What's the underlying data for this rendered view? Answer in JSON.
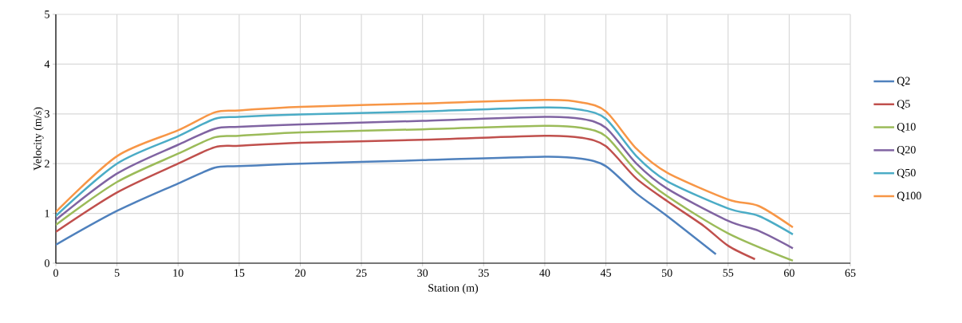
{
  "chart_data": {
    "type": "line",
    "xlabel": "Station (m)",
    "ylabel": "Velocity (m/s)",
    "xlim": [
      0,
      65
    ],
    "xticks": [
      0,
      5,
      10,
      15,
      20,
      25,
      30,
      35,
      40,
      45,
      50,
      55,
      60,
      65
    ],
    "ylim": [
      0,
      5
    ],
    "yticks": [
      0,
      1,
      2,
      3,
      4,
      5
    ],
    "grid": true,
    "legend": "right",
    "marker": "none",
    "line_style": "solid",
    "series": [
      {
        "name": "Q2",
        "color": "#4f81bd",
        "x": [
          0,
          5,
          10,
          13,
          15,
          20,
          30,
          40,
          43,
          45,
          47.5,
          50,
          54
        ],
        "values": [
          0.37,
          1.05,
          1.6,
          1.92,
          1.95,
          2.0,
          2.07,
          2.14,
          2.1,
          1.95,
          1.4,
          0.95,
          0.18
        ]
      },
      {
        "name": "Q5",
        "color": "#c0504d",
        "x": [
          0,
          5,
          10,
          13,
          15,
          20,
          30,
          40,
          43,
          45,
          47.5,
          50,
          53,
          55,
          57.2
        ],
        "values": [
          0.63,
          1.42,
          2.0,
          2.33,
          2.36,
          2.42,
          2.48,
          2.56,
          2.52,
          2.35,
          1.7,
          1.25,
          0.75,
          0.35,
          0.08
        ]
      },
      {
        "name": "Q10",
        "color": "#9bbb59",
        "x": [
          0,
          5,
          10,
          13,
          15,
          20,
          30,
          40,
          43,
          45,
          47.5,
          50,
          55,
          60.3
        ],
        "values": [
          0.77,
          1.63,
          2.2,
          2.53,
          2.56,
          2.63,
          2.69,
          2.76,
          2.72,
          2.55,
          1.85,
          1.35,
          0.6,
          0.05
        ]
      },
      {
        "name": "Q20",
        "color": "#8064a2",
        "x": [
          0,
          5,
          10,
          13,
          15,
          20,
          30,
          40,
          43,
          45,
          47.5,
          50,
          55,
          57.5,
          60.3
        ],
        "values": [
          0.87,
          1.8,
          2.38,
          2.7,
          2.74,
          2.79,
          2.86,
          2.94,
          2.9,
          2.72,
          2.0,
          1.5,
          0.85,
          0.65,
          0.3
        ]
      },
      {
        "name": "Q50",
        "color": "#4bacc6",
        "x": [
          0,
          5,
          10,
          13,
          15,
          20,
          30,
          40,
          43,
          45,
          47.5,
          50,
          55,
          57.5,
          60.3
        ],
        "values": [
          0.95,
          2.0,
          2.55,
          2.9,
          2.94,
          2.99,
          3.05,
          3.13,
          3.08,
          2.9,
          2.15,
          1.65,
          1.1,
          0.95,
          0.58
        ]
      },
      {
        "name": "Q100",
        "color": "#f79646",
        "x": [
          0,
          5,
          10,
          13,
          15,
          20,
          30,
          40,
          43,
          45,
          47.5,
          50,
          55,
          57.5,
          60.3
        ],
        "values": [
          1.03,
          2.15,
          2.67,
          3.03,
          3.07,
          3.14,
          3.21,
          3.28,
          3.23,
          3.05,
          2.3,
          1.82,
          1.28,
          1.15,
          0.72
        ]
      }
    ]
  }
}
